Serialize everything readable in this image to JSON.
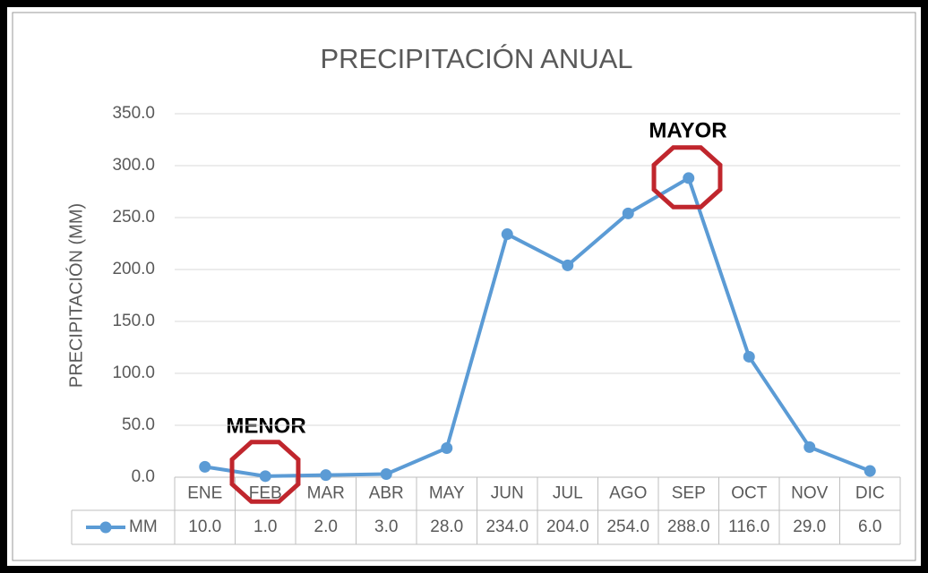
{
  "chart_data": {
    "type": "line",
    "title": "PRECIPITACIÓN ANUAL",
    "y_label": "PRECIPITACIÓN (MM)",
    "categories": [
      "ENE",
      "FEB",
      "MAR",
      "ABR",
      "MAY",
      "JUN",
      "JUL",
      "AGO",
      "SEP",
      "OCT",
      "NOV",
      "DIC"
    ],
    "series": [
      {
        "name": "MM",
        "color": "#5b9bd5",
        "values": [
          10,
          1,
          2,
          3,
          28,
          234,
          204,
          254,
          288,
          116,
          29,
          6
        ],
        "value_labels": [
          "10.0",
          "1.0",
          "2.0",
          "3.0",
          "28.0",
          "234.0",
          "204.0",
          "254.0",
          "288.0",
          "116.0",
          "29.0",
          "6.0"
        ]
      }
    ],
    "ylim": [
      0,
      350
    ],
    "yticks": [
      {
        "value": 0,
        "label": "0.0"
      },
      {
        "value": 50,
        "label": "50.0"
      },
      {
        "value": 100,
        "label": "100.0"
      },
      {
        "value": 150,
        "label": "150.0"
      },
      {
        "value": 200,
        "label": "200.0"
      },
      {
        "value": 250,
        "label": "250.0"
      },
      {
        "value": 300,
        "label": "300.0"
      },
      {
        "value": 350,
        "label": "350.0"
      }
    ],
    "grid": true,
    "data_table": true,
    "annotations": [
      "MENOR",
      "MAYOR"
    ]
  }
}
